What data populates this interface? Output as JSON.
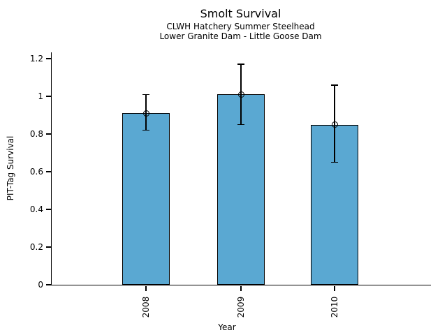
{
  "chart_data": {
    "type": "bar",
    "title": "Smolt Survival",
    "subtitle_line1": "CLWH Hatchery Summer Steelhead",
    "subtitle_line2": "Lower Granite Dam - Little Goose Dam",
    "xlabel": "Year",
    "ylabel": "PIT-Tag Survival",
    "categories": [
      "2008",
      "2009",
      "2010"
    ],
    "values": [
      0.91,
      1.01,
      0.85
    ],
    "error_upper": [
      1.01,
      1.17,
      1.06
    ],
    "error_lower": [
      0.82,
      0.85,
      0.65
    ],
    "y_ticks": {
      "values": [
        0,
        0.2,
        0.4,
        0.6,
        0.8,
        1,
        1.2
      ],
      "labels": [
        "0",
        "0.2",
        "0.4",
        "0.6",
        "0.8",
        "1",
        "1.2"
      ]
    },
    "ylim": [
      0,
      1.233
    ],
    "bar_color": "#5AA8D2",
    "edge_color": "#000000",
    "marker": "open-circle",
    "grid": false,
    "legend": "none"
  }
}
